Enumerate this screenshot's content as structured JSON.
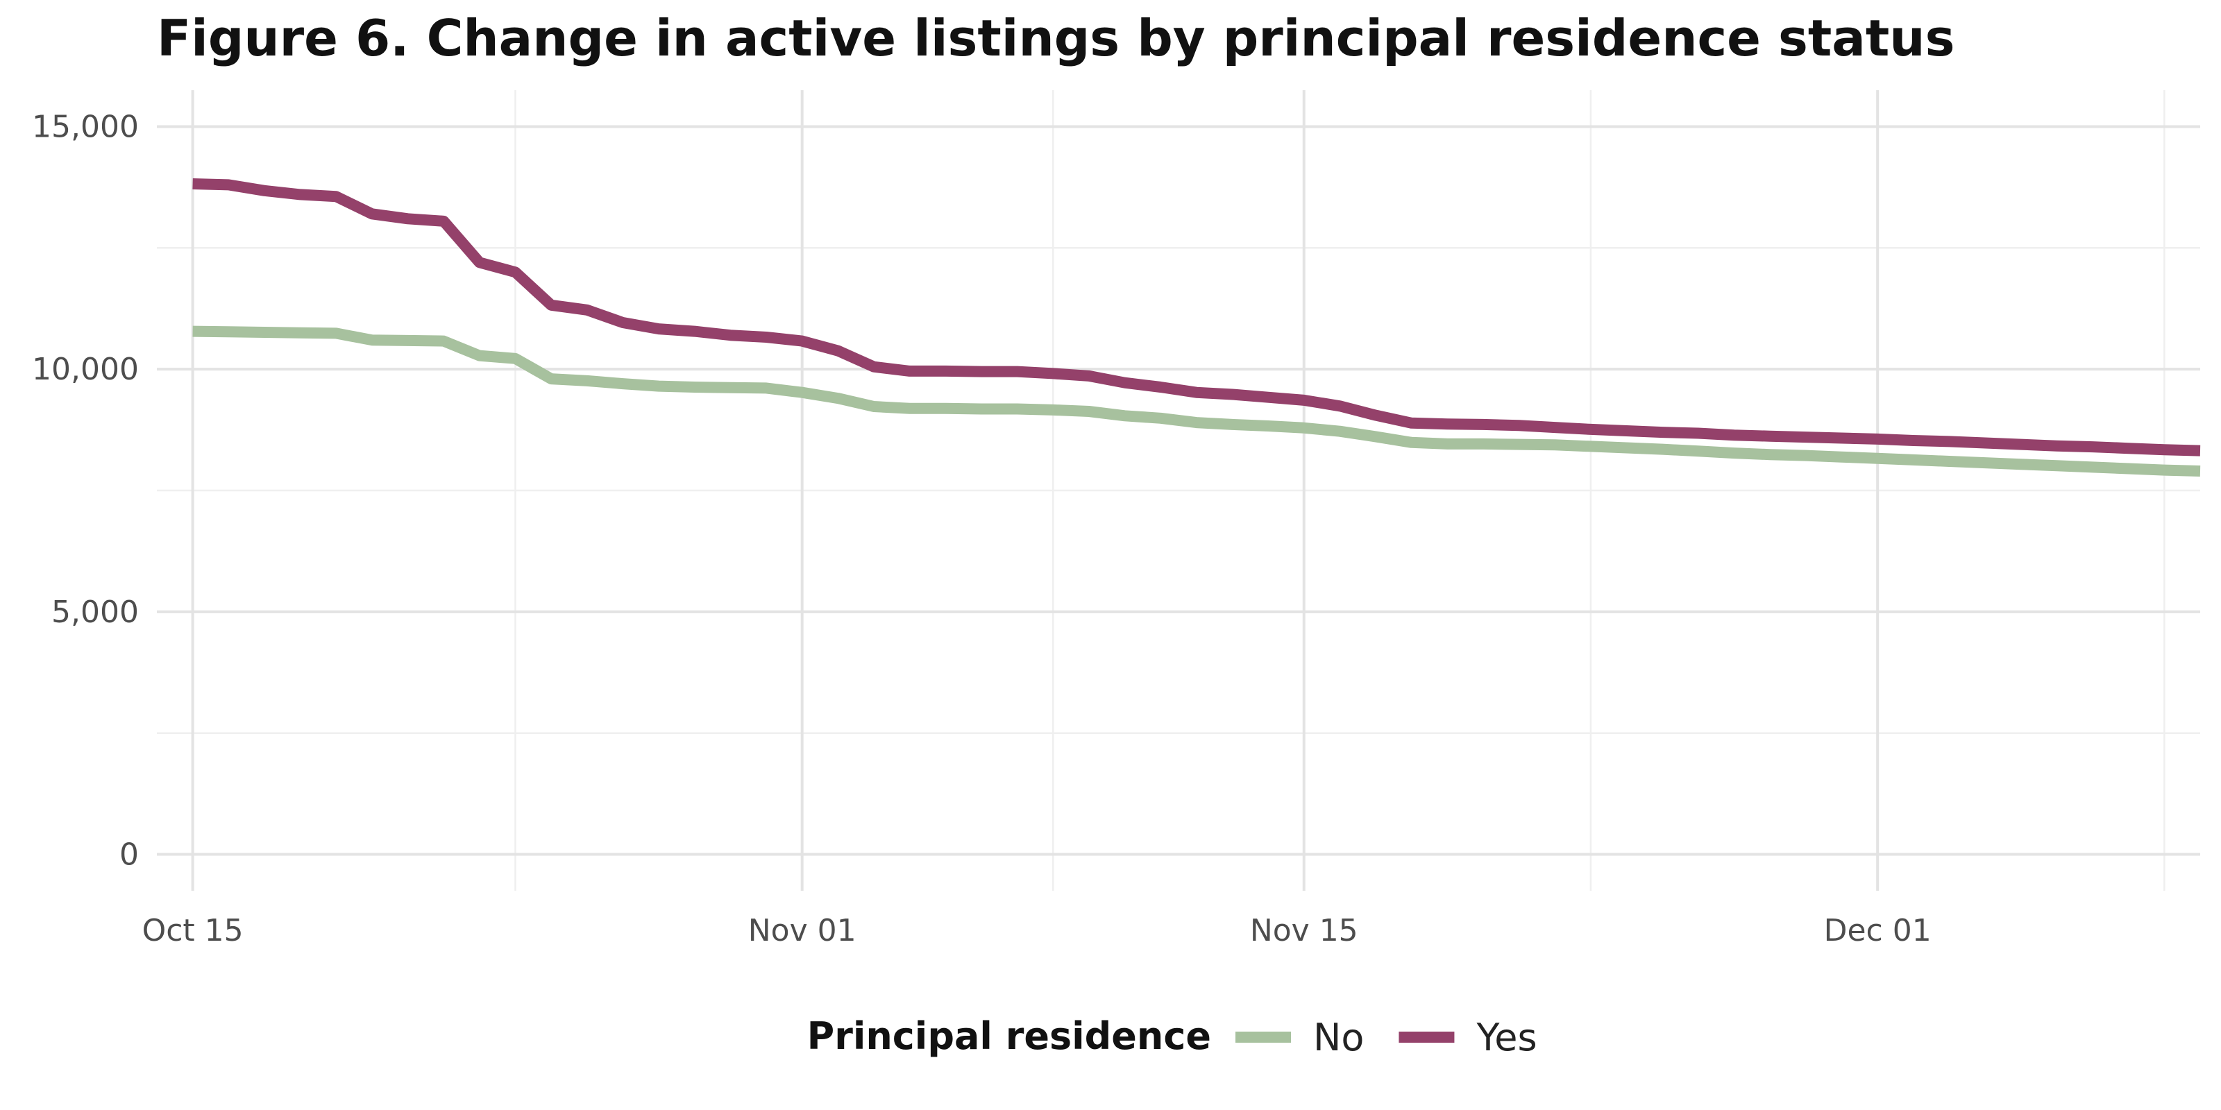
{
  "chart_data": {
    "type": "line",
    "title": "Figure 6. Change in active listings by principal residence status",
    "xlabel": "",
    "ylabel": "",
    "x_axis": {
      "type": "date",
      "range": [
        "2018-10-14",
        "2018-12-10"
      ],
      "ticks": [
        {
          "date": "2018-10-15",
          "label": "Oct 15"
        },
        {
          "date": "2018-11-01",
          "label": "Nov 01"
        },
        {
          "date": "2018-11-15",
          "label": "Nov 15"
        },
        {
          "date": "2018-12-01",
          "label": "Dec 01"
        }
      ],
      "minor_ticks": [
        "2018-10-24",
        "2018-11-08",
        "2018-11-23",
        "2018-12-09"
      ]
    },
    "y_axis": {
      "range": [
        -750,
        15750
      ],
      "ticks": [
        {
          "value": 0,
          "label": "0"
        },
        {
          "value": 5000,
          "label": "5,000"
        },
        {
          "value": 10000,
          "label": "10,000"
        },
        {
          "value": 15000,
          "label": "15,000"
        }
      ],
      "minor_ticks": [
        2500,
        7500,
        12500
      ]
    },
    "grid": true,
    "legend": {
      "title": "Principal residence",
      "position": "bottom"
    },
    "series": [
      {
        "name": "No",
        "color": "#a7c19e",
        "points": [
          [
            "2018-10-15",
            10780
          ],
          [
            "2018-10-16",
            10770
          ],
          [
            "2018-10-17",
            10760
          ],
          [
            "2018-10-18",
            10750
          ],
          [
            "2018-10-19",
            10740
          ],
          [
            "2018-10-20",
            10600
          ],
          [
            "2018-10-21",
            10590
          ],
          [
            "2018-10-22",
            10580
          ],
          [
            "2018-10-23",
            10280
          ],
          [
            "2018-10-24",
            10220
          ],
          [
            "2018-10-25",
            9800
          ],
          [
            "2018-10-26",
            9760
          ],
          [
            "2018-10-27",
            9700
          ],
          [
            "2018-10-28",
            9650
          ],
          [
            "2018-10-29",
            9630
          ],
          [
            "2018-10-30",
            9620
          ],
          [
            "2018-10-31",
            9610
          ],
          [
            "2018-11-01",
            9520
          ],
          [
            "2018-11-02",
            9400
          ],
          [
            "2018-11-03",
            9230
          ],
          [
            "2018-11-04",
            9190
          ],
          [
            "2018-11-05",
            9190
          ],
          [
            "2018-11-06",
            9180
          ],
          [
            "2018-11-07",
            9180
          ],
          [
            "2018-11-08",
            9160
          ],
          [
            "2018-11-09",
            9130
          ],
          [
            "2018-11-10",
            9040
          ],
          [
            "2018-11-11",
            8990
          ],
          [
            "2018-11-12",
            8900
          ],
          [
            "2018-11-13",
            8860
          ],
          [
            "2018-11-14",
            8830
          ],
          [
            "2018-11-15",
            8790
          ],
          [
            "2018-11-16",
            8720
          ],
          [
            "2018-11-17",
            8610
          ],
          [
            "2018-11-18",
            8490
          ],
          [
            "2018-11-19",
            8460
          ],
          [
            "2018-11-20",
            8460
          ],
          [
            "2018-11-21",
            8450
          ],
          [
            "2018-11-22",
            8440
          ],
          [
            "2018-11-23",
            8410
          ],
          [
            "2018-11-24",
            8380
          ],
          [
            "2018-11-25",
            8350
          ],
          [
            "2018-11-26",
            8310
          ],
          [
            "2018-11-27",
            8270
          ],
          [
            "2018-11-28",
            8240
          ],
          [
            "2018-11-29",
            8220
          ],
          [
            "2018-11-30",
            8190
          ],
          [
            "2018-12-01",
            8160
          ],
          [
            "2018-12-02",
            8130
          ],
          [
            "2018-12-03",
            8100
          ],
          [
            "2018-12-04",
            8070
          ],
          [
            "2018-12-05",
            8040
          ],
          [
            "2018-12-06",
            8010
          ],
          [
            "2018-12-07",
            7980
          ],
          [
            "2018-12-08",
            7950
          ],
          [
            "2018-12-09",
            7920
          ],
          [
            "2018-12-10",
            7900
          ]
        ]
      },
      {
        "name": "Yes",
        "color": "#94416a",
        "points": [
          [
            "2018-10-15",
            13820
          ],
          [
            "2018-10-16",
            13800
          ],
          [
            "2018-10-17",
            13680
          ],
          [
            "2018-10-18",
            13600
          ],
          [
            "2018-10-19",
            13560
          ],
          [
            "2018-10-20",
            13200
          ],
          [
            "2018-10-21",
            13100
          ],
          [
            "2018-10-22",
            13050
          ],
          [
            "2018-10-23",
            12200
          ],
          [
            "2018-10-24",
            12000
          ],
          [
            "2018-10-25",
            11320
          ],
          [
            "2018-10-26",
            11220
          ],
          [
            "2018-10-27",
            10960
          ],
          [
            "2018-10-28",
            10830
          ],
          [
            "2018-10-29",
            10780
          ],
          [
            "2018-10-30",
            10700
          ],
          [
            "2018-10-31",
            10660
          ],
          [
            "2018-11-01",
            10580
          ],
          [
            "2018-11-02",
            10380
          ],
          [
            "2018-11-03",
            10050
          ],
          [
            "2018-11-04",
            9960
          ],
          [
            "2018-11-05",
            9960
          ],
          [
            "2018-11-06",
            9950
          ],
          [
            "2018-11-07",
            9950
          ],
          [
            "2018-11-08",
            9910
          ],
          [
            "2018-11-09",
            9860
          ],
          [
            "2018-11-10",
            9720
          ],
          [
            "2018-11-11",
            9630
          ],
          [
            "2018-11-12",
            9520
          ],
          [
            "2018-11-13",
            9480
          ],
          [
            "2018-11-14",
            9420
          ],
          [
            "2018-11-15",
            9360
          ],
          [
            "2018-11-16",
            9240
          ],
          [
            "2018-11-17",
            9050
          ],
          [
            "2018-11-18",
            8890
          ],
          [
            "2018-11-19",
            8870
          ],
          [
            "2018-11-20",
            8860
          ],
          [
            "2018-11-21",
            8840
          ],
          [
            "2018-11-22",
            8800
          ],
          [
            "2018-11-23",
            8760
          ],
          [
            "2018-11-24",
            8730
          ],
          [
            "2018-11-25",
            8700
          ],
          [
            "2018-11-26",
            8680
          ],
          [
            "2018-11-27",
            8640
          ],
          [
            "2018-11-28",
            8620
          ],
          [
            "2018-11-29",
            8600
          ],
          [
            "2018-11-30",
            8580
          ],
          [
            "2018-12-01",
            8560
          ],
          [
            "2018-12-02",
            8530
          ],
          [
            "2018-12-03",
            8510
          ],
          [
            "2018-12-04",
            8480
          ],
          [
            "2018-12-05",
            8450
          ],
          [
            "2018-12-06",
            8420
          ],
          [
            "2018-12-07",
            8400
          ],
          [
            "2018-12-08",
            8370
          ],
          [
            "2018-12-09",
            8340
          ],
          [
            "2018-12-10",
            8320
          ]
        ]
      }
    ]
  }
}
